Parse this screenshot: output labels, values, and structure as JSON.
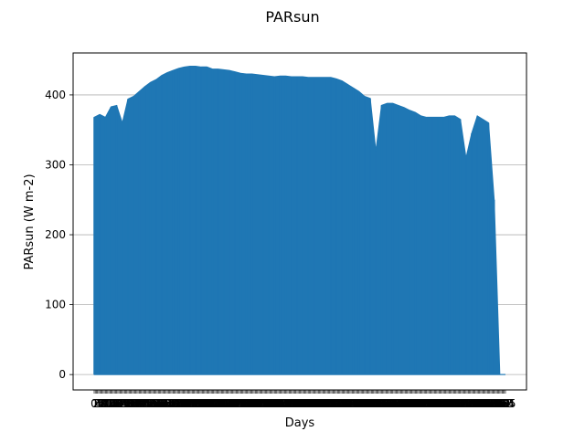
{
  "chart_data": {
    "type": "area",
    "title": "PARsun",
    "xlabel": "Days",
    "ylabel": "PARsun (W m-2)",
    "xlim": [
      0,
      365
    ],
    "ylim": [
      -22,
      460
    ],
    "yticks": [
      0,
      100,
      200,
      300,
      400
    ],
    "grid": "horizontal",
    "legend": "none",
    "series_color": "#1f77b4",
    "xtick_labels_visible": [
      "0",
      "365"
    ],
    "series": [
      {
        "x": [
          0,
          5,
          10,
          15,
          20,
          25,
          30,
          35,
          40,
          45,
          50,
          55,
          60,
          65,
          70,
          75,
          80,
          85,
          90,
          95,
          100,
          105,
          110,
          115,
          120,
          125,
          130,
          135,
          140,
          145,
          150,
          155,
          160,
          165,
          170,
          175,
          180,
          185,
          190,
          195,
          200,
          205,
          210,
          215,
          220,
          225,
          230,
          235,
          240,
          245,
          250,
          255,
          260,
          265,
          270,
          275,
          280,
          285,
          290,
          295,
          300,
          305,
          310,
          315,
          320,
          325,
          330,
          335,
          340,
          345,
          350,
          355,
          360,
          365
        ],
        "values": [
          368,
          372,
          368,
          383,
          385,
          360,
          394,
          398,
          405,
          412,
          418,
          422,
          428,
          432,
          435,
          438,
          440,
          441,
          441,
          440,
          440,
          437,
          437,
          436,
          435,
          433,
          431,
          430,
          430,
          429,
          428,
          427,
          426,
          427,
          427,
          426,
          426,
          426,
          425,
          425,
          425,
          425,
          425,
          423,
          420,
          415,
          410,
          405,
          398,
          395,
          320,
          385,
          388,
          388,
          385,
          382,
          378,
          375,
          370,
          368,
          368,
          368,
          368,
          370,
          370,
          365,
          310,
          345,
          370,
          365,
          360,
          250,
          0,
          0
        ]
      }
    ]
  }
}
